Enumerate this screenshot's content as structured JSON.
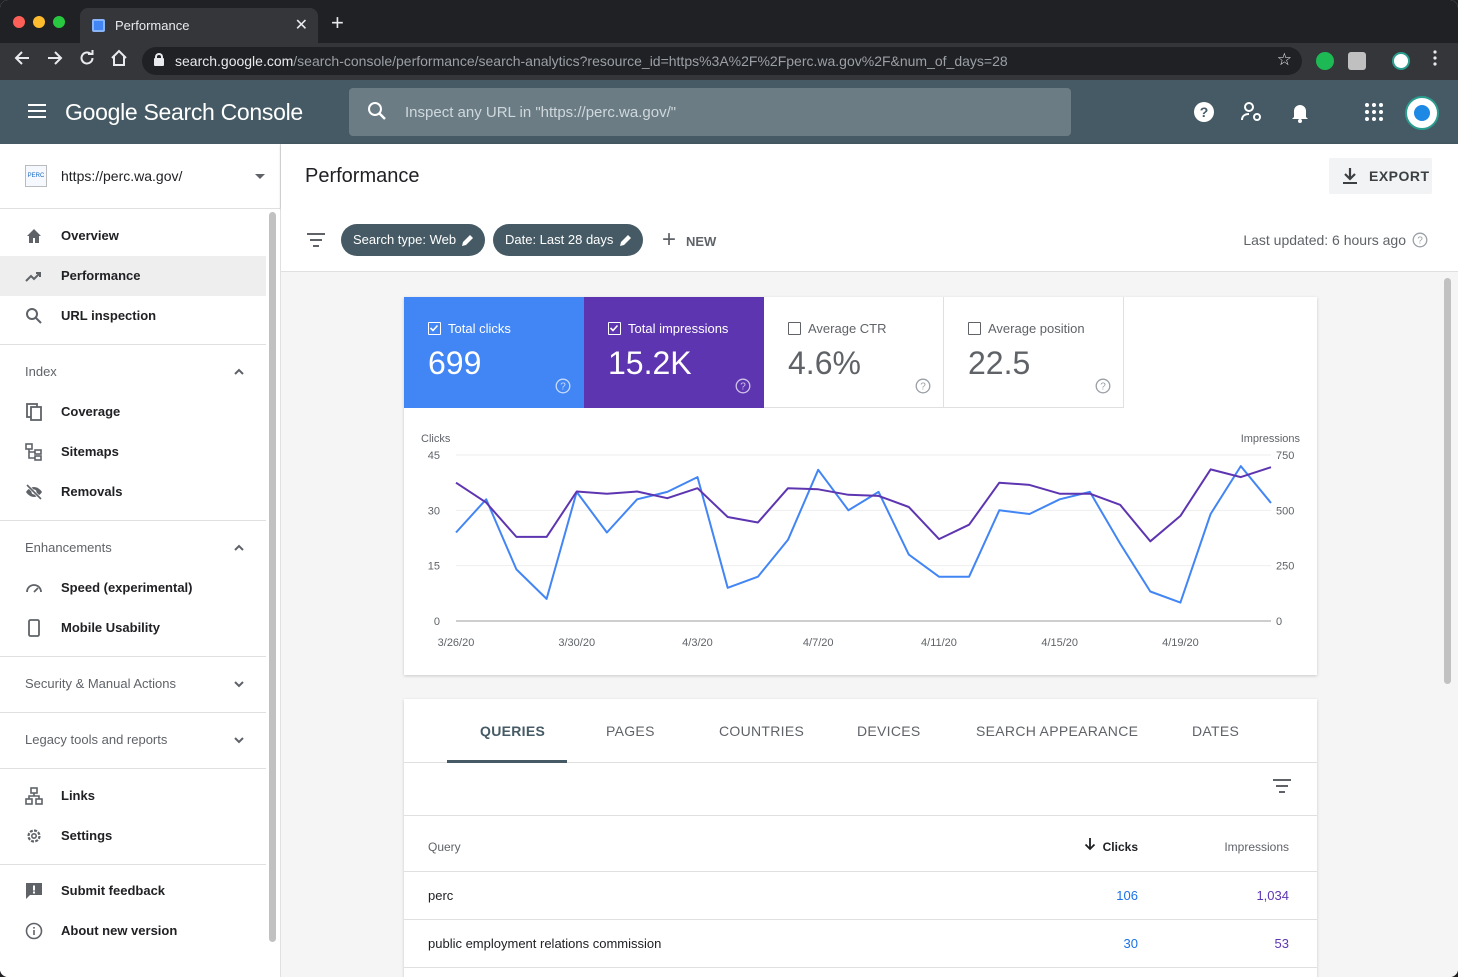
{
  "browser": {
    "tab_title": "Performance",
    "url_host": "search.google.com",
    "url_path": "/search-console/performance/search-analytics?resource_id=https%3A%2F%2Fperc.wa.gov%2F&num_of_days=28"
  },
  "header": {
    "logo": "Google Search Console",
    "search_placeholder": "Inspect any URL in \"https://perc.wa.gov/\""
  },
  "sidebar": {
    "property": "https://perc.wa.gov/",
    "property_favicon_text": "PERC",
    "items": {
      "overview": "Overview",
      "performance": "Performance",
      "url_inspection": "URL inspection",
      "coverage": "Coverage",
      "sitemaps": "Sitemaps",
      "removals": "Removals",
      "speed": "Speed (experimental)",
      "mobile": "Mobile Usability",
      "links": "Links",
      "settings": "Settings",
      "feedback": "Submit feedback",
      "about": "About new version"
    },
    "sections": {
      "index": "Index",
      "enhancements": "Enhancements",
      "security": "Security & Manual Actions",
      "legacy": "Legacy tools and reports"
    }
  },
  "main": {
    "title": "Performance",
    "export_label": "EXPORT",
    "chips": [
      "Search type: Web",
      "Date: Last 28 days"
    ],
    "new_label": "NEW",
    "last_updated": "Last updated: 6 hours ago"
  },
  "metrics": [
    {
      "name": "Total clicks",
      "value": "699",
      "checked": true,
      "color": "#4285f4"
    },
    {
      "name": "Total impressions",
      "value": "15.2K",
      "checked": true,
      "color": "#5e35b1"
    },
    {
      "name": "Average CTR",
      "value": "4.6%",
      "checked": false
    },
    {
      "name": "Average position",
      "value": "22.5",
      "checked": false
    }
  ],
  "chart_data": {
    "type": "line",
    "ylabel_left": "Clicks",
    "ylabel_right": "Impressions",
    "ylim_left": [
      0,
      45
    ],
    "ylim_right": [
      0,
      750
    ],
    "yticks_left": [
      "0",
      "15",
      "30",
      "45"
    ],
    "yticks_right": [
      "0",
      "250",
      "500",
      "750"
    ],
    "xtick_labels": [
      "3/26/20",
      "3/30/20",
      "4/3/20",
      "4/7/20",
      "4/11/20",
      "4/15/20",
      "4/19/20"
    ],
    "x": [
      "3/26/20",
      "3/27/20",
      "3/28/20",
      "3/29/20",
      "3/30/20",
      "3/31/20",
      "4/1/20",
      "4/2/20",
      "4/3/20",
      "4/4/20",
      "4/5/20",
      "4/6/20",
      "4/7/20",
      "4/8/20",
      "4/9/20",
      "4/10/20",
      "4/11/20",
      "4/12/20",
      "4/13/20",
      "4/14/20",
      "4/15/20",
      "4/16/20",
      "4/17/20",
      "4/18/20",
      "4/19/20",
      "4/20/20",
      "4/21/20",
      "4/22/20"
    ],
    "grid": true,
    "series": [
      {
        "name": "Clicks",
        "axis": "left",
        "color": "#4285f4",
        "values": [
          24,
          33,
          14,
          6,
          35,
          24,
          33,
          35,
          39,
          9,
          12,
          22,
          41,
          30,
          35,
          18,
          12,
          12,
          30,
          29,
          33,
          35,
          21,
          8,
          5,
          29,
          42,
          32
        ]
      },
      {
        "name": "Impressions",
        "axis": "right",
        "color": "#5e35b1",
        "values": [
          625,
          535,
          380,
          380,
          585,
          575,
          585,
          555,
          600,
          470,
          445,
          600,
          595,
          570,
          565,
          515,
          370,
          435,
          625,
          615,
          575,
          575,
          525,
          360,
          475,
          685,
          650,
          695
        ]
      }
    ]
  },
  "table": {
    "tabs": [
      "QUERIES",
      "PAGES",
      "COUNTRIES",
      "DEVICES",
      "SEARCH APPEARANCE",
      "DATES"
    ],
    "headers": {
      "query": "Query",
      "clicks": "Clicks",
      "impressions": "Impressions"
    },
    "rows": [
      {
        "query": "perc",
        "clicks": "106",
        "impressions": "1,034"
      },
      {
        "query": "public employment relations commission",
        "clicks": "30",
        "impressions": "53"
      }
    ]
  }
}
